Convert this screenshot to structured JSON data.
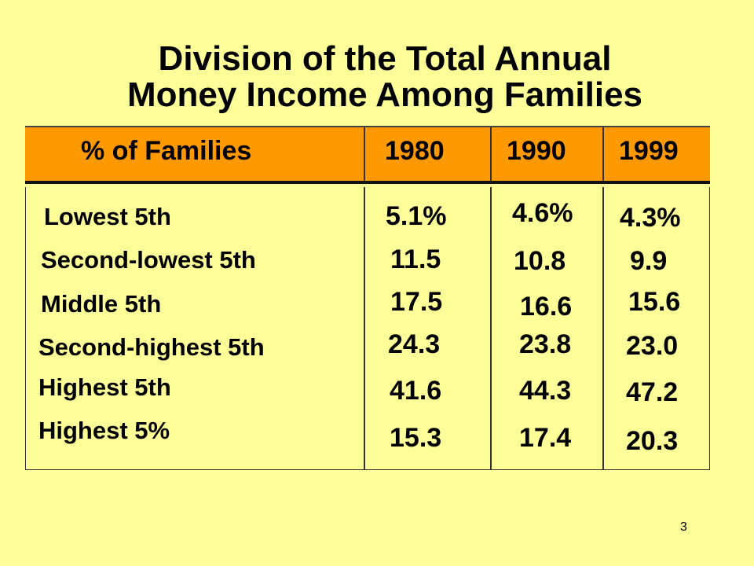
{
  "title": {
    "line1": "Division of the Total Annual",
    "line2": "Money Income Among Families"
  },
  "table": {
    "header": {
      "label": "% of Families",
      "years": [
        "1980",
        "1990",
        "1999"
      ]
    },
    "rows": [
      {
        "label": "Lowest 5th",
        "values": [
          "5.1%",
          "4.6%",
          "4.3%"
        ]
      },
      {
        "label": "Second-lowest 5th",
        "values": [
          "11.5",
          "10.8",
          "9.9"
        ]
      },
      {
        "label": "Middle 5th",
        "values": [
          "17.5",
          "16.6",
          "15.6"
        ]
      },
      {
        "label": "Second-highest 5th",
        "values": [
          "24.3",
          "23.8",
          "23.0"
        ]
      },
      {
        "label": "Highest 5th",
        "values": [
          "41.6",
          "44.3",
          "47.2"
        ]
      },
      {
        "label": "Highest 5%",
        "values": [
          "15.3",
          "17.4",
          "20.3"
        ]
      }
    ]
  },
  "page_number": "3",
  "colors": {
    "background": "#ffff99",
    "header": "#ff9900"
  }
}
